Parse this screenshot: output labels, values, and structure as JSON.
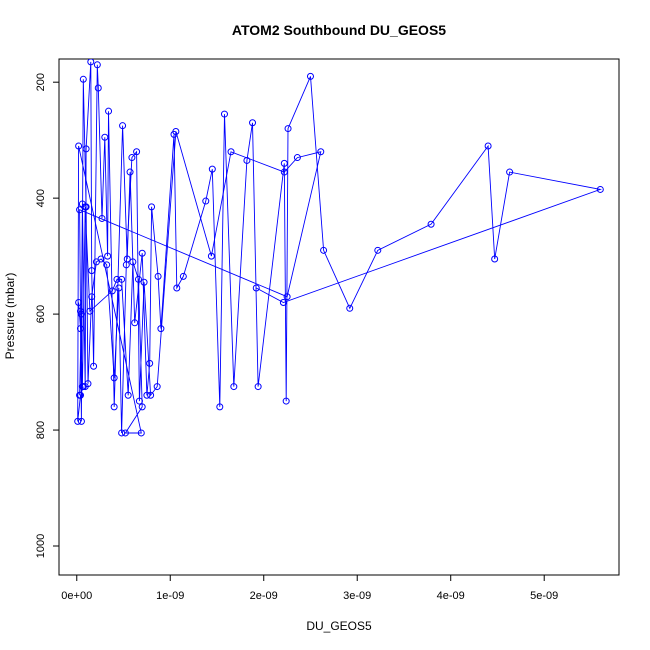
{
  "chart_data": {
    "type": "scatter",
    "title": "ATOM2 Southbound DU_GEOS5",
    "xlabel": "DU_GEOS5",
    "ylabel": "Pressure (mbar)",
    "xlim": [
      -1.9e-10,
      5.8e-09
    ],
    "ylim": [
      1050,
      160
    ],
    "y_reversed": true,
    "x_ticks": [
      {
        "value": 0,
        "label": "0e+00"
      },
      {
        "value": 1e-09,
        "label": "1e-09"
      },
      {
        "value": 2e-09,
        "label": "2e-09"
      },
      {
        "value": 3e-09,
        "label": "3e-09"
      },
      {
        "value": 4e-09,
        "label": "4e-09"
      },
      {
        "value": 5e-09,
        "label": "5e-09"
      }
    ],
    "y_ticks": [
      {
        "value": 200,
        "label": "200"
      },
      {
        "value": 400,
        "label": "400"
      },
      {
        "value": 600,
        "label": "600"
      },
      {
        "value": 800,
        "label": "800"
      },
      {
        "value": 1000,
        "label": "1000"
      }
    ],
    "grid": false,
    "legend": "none",
    "color": "#0000ff",
    "marker": "open-circle",
    "connected": true,
    "series": [
      {
        "values": [
          [
            3e-11,
            740
          ],
          [
            5e-11,
            600
          ],
          [
            6e-11,
            410
          ],
          [
            9e-11,
            725
          ],
          [
            1e-10,
            315
          ],
          [
            1.5e-10,
            165
          ],
          [
            1.6e-10,
            525
          ],
          [
            1.8e-10,
            690
          ],
          [
            2.2e-10,
            170
          ],
          [
            2.3e-10,
            210
          ],
          [
            2.7e-10,
            435
          ],
          [
            3e-10,
            295
          ],
          [
            3.3e-10,
            500
          ],
          [
            3.4e-10,
            250
          ],
          [
            4e-10,
            760
          ],
          [
            4.9e-10,
            275
          ],
          [
            5.4e-10,
            505
          ],
          [
            5.7e-10,
            355
          ],
          [
            6.2e-10,
            615
          ],
          [
            7e-10,
            495
          ],
          [
            7.5e-10,
            740
          ],
          [
            7.8e-10,
            685
          ],
          [
            8e-10,
            415
          ],
          [
            8.7e-10,
            535
          ],
          [
            9e-10,
            625
          ],
          [
            1.04e-09,
            290
          ],
          [
            1.07e-09,
            555
          ],
          [
            1.14e-09,
            535
          ],
          [
            1.38e-09,
            405
          ],
          [
            1.45e-09,
            350
          ],
          [
            1.53e-09,
            760
          ],
          [
            1.58e-09,
            255
          ],
          [
            1.68e-09,
            725
          ],
          [
            1.82e-09,
            335
          ],
          [
            1.88e-09,
            270
          ],
          [
            1.94e-09,
            725
          ],
          [
            2.22e-09,
            340
          ],
          [
            2.24e-09,
            750
          ],
          [
            2.26e-09,
            280
          ],
          [
            2.5e-09,
            190
          ],
          [
            2.64e-09,
            490
          ],
          [
            2.92e-09,
            590
          ],
          [
            3.22e-09,
            490
          ],
          [
            3.79e-09,
            445
          ],
          [
            4.4e-09,
            310
          ],
          [
            4.47e-09,
            505
          ],
          [
            4.63e-09,
            355
          ],
          [
            5.6e-09,
            385
          ],
          [
            2.21e-09,
            580
          ],
          [
            1.92e-09,
            555
          ]
        ]
      },
      {
        "values": [
          [
            2e-11,
            580
          ],
          [
            4e-11,
            625
          ],
          [
            5e-11,
            785
          ],
          [
            7e-11,
            195
          ],
          [
            1e-10,
            415
          ],
          [
            1.2e-10,
            720
          ],
          [
            1.6e-10,
            570
          ],
          [
            2.1e-10,
            510
          ],
          [
            2.6e-10,
            505
          ],
          [
            3.2e-10,
            515
          ],
          [
            4e-10,
            710
          ],
          [
            4.5e-10,
            555
          ],
          [
            4.8e-10,
            805
          ],
          [
            5.3e-10,
            515
          ],
          [
            5.9e-10,
            330
          ],
          [
            6.4e-10,
            320
          ],
          [
            6.7e-10,
            750
          ],
          [
            7.2e-10,
            545
          ],
          [
            7.9e-10,
            740
          ],
          [
            8.6e-10,
            725
          ],
          [
            1.06e-09,
            285
          ],
          [
            1.44e-09,
            500
          ],
          [
            1.65e-09,
            320
          ],
          [
            2.22e-09,
            355
          ],
          [
            2.36e-09,
            330
          ],
          [
            2.61e-09,
            320
          ],
          [
            2.25e-09,
            570
          ],
          [
            3e-11,
            420
          ],
          [
            4e-11,
            595
          ],
          [
            6e-11,
            725
          ],
          [
            9e-11,
            415
          ],
          [
            1.4e-10,
            595
          ],
          [
            3.8e-10,
            560
          ],
          [
            4.3e-10,
            540
          ],
          [
            4.8e-10,
            540
          ],
          [
            5.5e-10,
            740
          ],
          [
            6e-10,
            510
          ],
          [
            6.6e-10,
            540
          ],
          [
            7e-10,
            760
          ],
          [
            5.2e-10,
            805
          ],
          [
            6.9e-10,
            805
          ],
          [
            2e-11,
            310
          ],
          [
            1e-11,
            785
          ],
          [
            4e-11,
            740
          ],
          [
            7e-11,
            725
          ]
        ]
      }
    ]
  }
}
